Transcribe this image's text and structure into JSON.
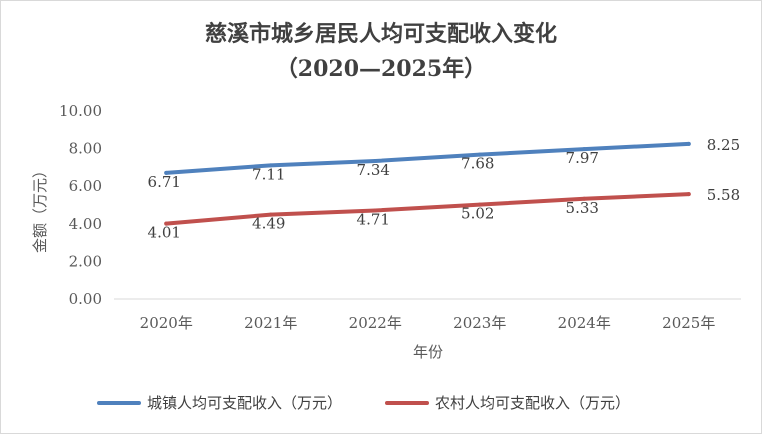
{
  "chart_data": {
    "type": "line",
    "title": "慈溪市城乡居民人均可支配收入变化",
    "subtitle": "（2020—2025年）",
    "xlabel": "年份",
    "ylabel": "金额（万元）",
    "categories": [
      "2020年",
      "2021年",
      "2022年",
      "2023年",
      "2024年",
      "2025年"
    ],
    "ylim": [
      0,
      10
    ],
    "yticks": [
      "0.00",
      "2.00",
      "4.00",
      "6.00",
      "8.00",
      "10.00"
    ],
    "grid": false,
    "legend_position": "bottom",
    "series": [
      {
        "name": "城镇人均可支配收入（万元）",
        "color": "#4f81bd",
        "values": [
          6.71,
          7.11,
          7.34,
          7.68,
          7.97,
          8.25
        ],
        "labels": [
          "6.71",
          "7.11",
          "7.34",
          "7.68",
          "7.97",
          "8.25"
        ]
      },
      {
        "name": "农村人均可支配收入（万元）",
        "color": "#c0504d",
        "values": [
          4.01,
          4.49,
          4.71,
          5.02,
          5.33,
          5.58
        ],
        "labels": [
          "4.01",
          "4.49",
          "4.71",
          "5.02",
          "5.33",
          "5.58"
        ]
      }
    ]
  }
}
